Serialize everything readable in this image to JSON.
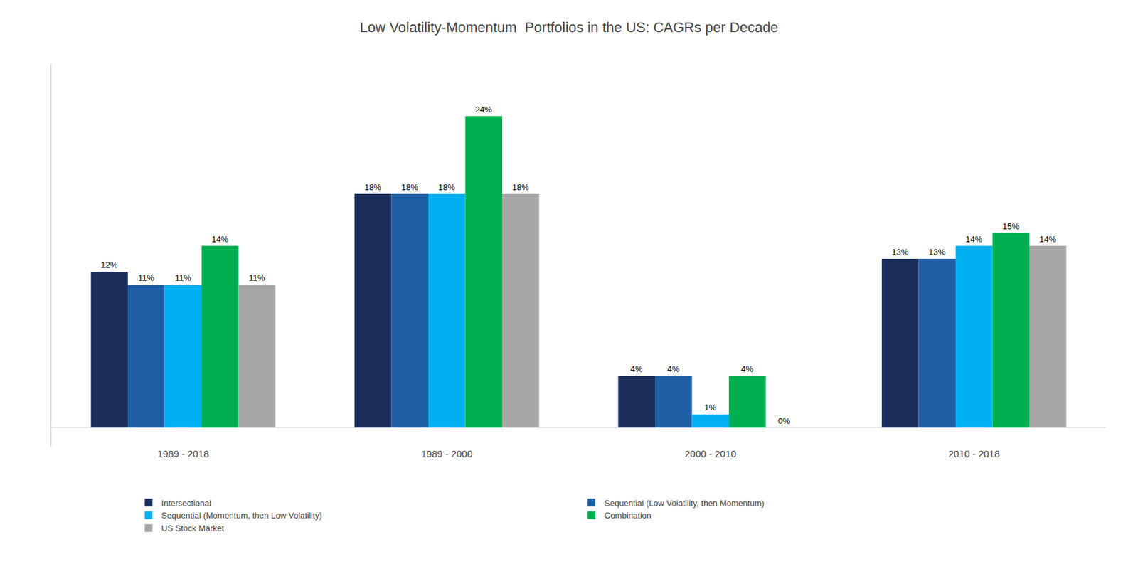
{
  "chart_data": {
    "type": "bar",
    "title": "Low Volatility-Momentum  Portfolios in the US: CAGRs per Decade",
    "categories": [
      "1989 - 2018",
      "1989 - 2000",
      "2000 - 2010",
      "2010 - 2018"
    ],
    "series": [
      {
        "name": "Intersectional",
        "color": "#1a2e5c",
        "values": [
          12,
          18,
          4,
          13
        ],
        "value_labels": [
          "12%",
          "18%",
          "4%",
          "13%"
        ]
      },
      {
        "name": "Sequential (Low Volatility, then Momentum)",
        "color": "#1f5fa6",
        "values": [
          11,
          18,
          4,
          13
        ],
        "value_labels": [
          "11%",
          "18%",
          "4%",
          "13%"
        ]
      },
      {
        "name": "Sequential (Momentum, then Low Volatility)",
        "color": "#00b0f0",
        "values": [
          11,
          18,
          1,
          14
        ],
        "value_labels": [
          "11%",
          "18%",
          "1%",
          "14%"
        ]
      },
      {
        "name": "Combination",
        "color": "#00b050",
        "values": [
          14,
          24,
          4,
          15
        ],
        "value_labels": [
          "14%",
          "24%",
          "4%",
          "15%"
        ]
      },
      {
        "name": "US Stock Market",
        "color": "#a6a6a6",
        "values": [
          11,
          18,
          0,
          14
        ],
        "value_labels": [
          "11%",
          "18%",
          "0%",
          "14%"
        ]
      }
    ],
    "ylim": [
      -1.5,
      28
    ],
    "grid": false,
    "legend": "bottom",
    "data_labels": true,
    "tick_labels": "x"
  }
}
